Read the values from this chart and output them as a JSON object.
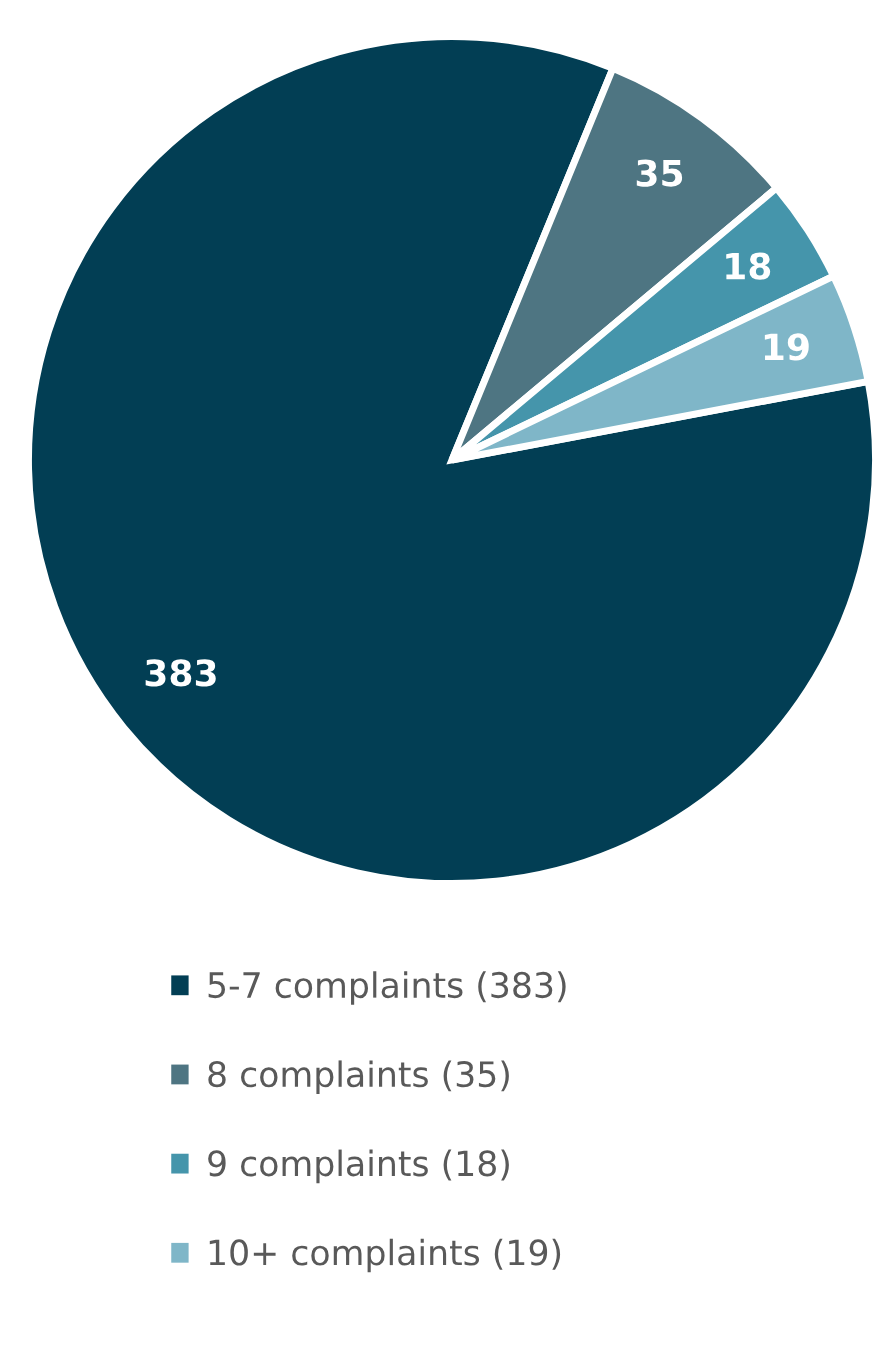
{
  "chart_data": {
    "type": "pie",
    "categories": [
      "5-7 complaints (383)",
      "8 complaints (35)",
      "9 complaints (18)",
      "10+ complaints (19)"
    ],
    "values": [
      383,
      35,
      18,
      19
    ],
    "colors": [
      "#023e54",
      "#4e7582",
      "#4595ab",
      "#7fb6c8"
    ],
    "data_labels": true,
    "legend": "bottom"
  }
}
